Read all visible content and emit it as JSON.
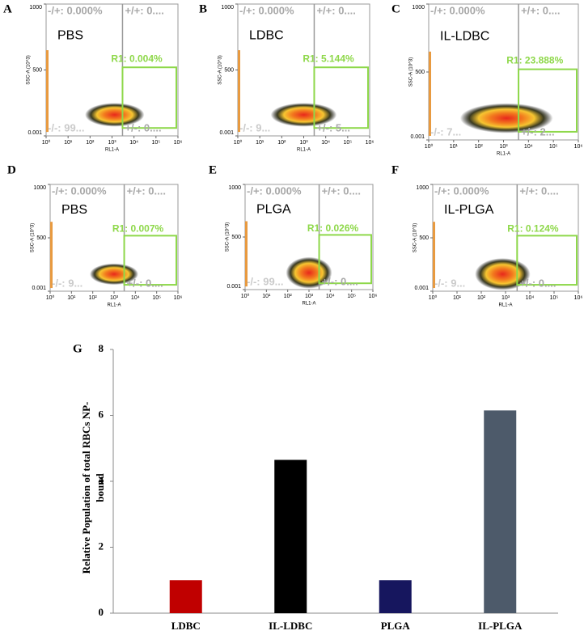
{
  "chart_data": [
    {
      "type": "flow",
      "panel_label": "A",
      "sample": "PBS",
      "quadrant_labels": {
        "ul": "-/+: 0.000%",
        "ur": "+/+: 0....",
        "ll": "-/-: 99...",
        "lr": "+/-: 0...."
      },
      "gate_label": "R1: 0.004%",
      "xlabel": "RL1-A",
      "ylabel": "SSC-A (10^3)",
      "xscale": "log",
      "xlim": [
        1,
        1000000
      ],
      "xticks": [
        {
          "value": 1,
          "label": "10⁰"
        },
        {
          "value": 10,
          "label": "10¹"
        },
        {
          "value": 100,
          "label": "10²"
        },
        {
          "value": 1000,
          "label": "10³"
        },
        {
          "value": 10000,
          "label": "10⁴"
        },
        {
          "value": 100000,
          "label": "10⁵"
        },
        {
          "value": 1000000,
          "label": "10⁶"
        }
      ],
      "ylim": [
        0,
        1000
      ],
      "yticks": [
        0.001,
        500,
        1000
      ],
      "gate_x": 3000
    },
    {
      "type": "flow",
      "panel_label": "B",
      "sample": "LDBC",
      "quadrant_labels": {
        "ul": "-/+: 0.000%",
        "ur": "+/+: 0....",
        "ll": "-/-: 9...",
        "lr": "+/-: 5..."
      },
      "gate_label": "R1: 5.144%",
      "xlabel": "RL1-A",
      "ylabel": "SSC-A (10^3)",
      "xscale": "log",
      "xlim": [
        1,
        1000000
      ],
      "xticks": [
        {
          "value": 1,
          "label": "10⁰"
        },
        {
          "value": 10,
          "label": "10¹"
        },
        {
          "value": 100,
          "label": "10²"
        },
        {
          "value": 1000,
          "label": "10³"
        },
        {
          "value": 10000,
          "label": "10⁴"
        },
        {
          "value": 100000,
          "label": "10⁵"
        },
        {
          "value": 1000000,
          "label": "10⁶"
        }
      ],
      "ylim": [
        0,
        1000
      ],
      "yticks": [
        0.001,
        500,
        1000
      ],
      "gate_x": 3000
    },
    {
      "type": "flow",
      "panel_label": "C",
      "sample": "IL-LDBC",
      "quadrant_labels": {
        "ul": "-/+: 0.000%",
        "ur": "+/+: 0....",
        "ll": "-/-: 7...",
        "lr": "+/-: 2..."
      },
      "gate_label": "R1: 23.888%",
      "xlabel": "RL1-A",
      "ylabel": "SSC-A (10^3)",
      "xscale": "log",
      "xlim": [
        1,
        1000000
      ],
      "xticks": [
        {
          "value": 1,
          "label": "10⁰"
        },
        {
          "value": 10,
          "label": "10¹"
        },
        {
          "value": 100,
          "label": "10²"
        },
        {
          "value": 1000,
          "label": "10³"
        },
        {
          "value": 10000,
          "label": "10⁴"
        },
        {
          "value": 100000,
          "label": "10⁵"
        },
        {
          "value": 1000000,
          "label": "10⁶"
        }
      ],
      "ylim": [
        0,
        1000
      ],
      "yticks": [
        0.001,
        500,
        1000
      ],
      "gate_x": 4000
    },
    {
      "type": "flow",
      "panel_label": "D",
      "sample": "PBS",
      "quadrant_labels": {
        "ul": "-/+: 0.000%",
        "ur": "+/+: 0....",
        "ll": "-/-: 9...",
        "lr": "+/-: 0...."
      },
      "gate_label": "R1: 0.007%",
      "xlabel": "RL1-A",
      "ylabel": "SSC-A (10^3)",
      "xscale": "log",
      "xlim": [
        1,
        1000000
      ],
      "xticks": [
        {
          "value": 1,
          "label": "10⁰"
        },
        {
          "value": 10,
          "label": "10¹"
        },
        {
          "value": 100,
          "label": "10²"
        },
        {
          "value": 1000,
          "label": "10³"
        },
        {
          "value": 10000,
          "label": "10⁴"
        },
        {
          "value": 100000,
          "label": "10⁵"
        },
        {
          "value": 1000000,
          "label": "10⁶"
        }
      ],
      "ylim": [
        0,
        1000
      ],
      "yticks": [
        0.001,
        500,
        1000
      ],
      "gate_x": 3000
    },
    {
      "type": "flow",
      "panel_label": "E",
      "sample": "PLGA",
      "quadrant_labels": {
        "ul": "-/+: 0.000%",
        "ur": "+/+: 0....",
        "ll": "-/-: 99...",
        "lr": "+/-: 0...."
      },
      "gate_label": "R1: 0.026%",
      "xlabel": "RL1-A",
      "ylabel": "SSC-A (10^3)",
      "xscale": "log",
      "xlim": [
        1,
        1000000
      ],
      "xticks": [
        {
          "value": 1,
          "label": "10⁰"
        },
        {
          "value": 10,
          "label": "10¹"
        },
        {
          "value": 100,
          "label": "10²"
        },
        {
          "value": 1000,
          "label": "10³"
        },
        {
          "value": 10000,
          "label": "10⁴"
        },
        {
          "value": 100000,
          "label": "10⁵"
        },
        {
          "value": 1000000,
          "label": "10⁶"
        }
      ],
      "ylim": [
        0,
        1000
      ],
      "yticks": [
        0.001,
        500,
        1000
      ],
      "gate_x": 3000
    },
    {
      "type": "flow",
      "panel_label": "F",
      "sample": "IL-PLGA",
      "quadrant_labels": {
        "ul": "-/+: 0.000%",
        "ur": "+/+: 0....",
        "ll": "-/-: 9...",
        "lr": "+/-: 0...."
      },
      "gate_label": "R1: 0.124%",
      "xlabel": "RL1-A",
      "ylabel": "SSC-A (10^3)",
      "xscale": "log",
      "xlim": [
        1,
        1000000
      ],
      "xticks": [
        {
          "value": 1,
          "label": "10⁰"
        },
        {
          "value": 10,
          "label": "10¹"
        },
        {
          "value": 100,
          "label": "10²"
        },
        {
          "value": 1000,
          "label": "10³"
        },
        {
          "value": 10000,
          "label": "10⁴"
        },
        {
          "value": 100000,
          "label": "10⁵"
        },
        {
          "value": 1000000,
          "label": "10⁶"
        }
      ],
      "ylim": [
        0,
        1000
      ],
      "yticks": [
        0.001,
        500,
        1000
      ],
      "gate_x": 3000
    },
    {
      "type": "bar",
      "panel_label": "G",
      "ylabel": [
        "Relative Population of total RBCs NP-",
        "bound"
      ],
      "categories": [
        "LDBC",
        "IL-LDBC",
        "PLGA",
        "IL-PLGA"
      ],
      "values": [
        1,
        4.65,
        1,
        6.15
      ],
      "colors": [
        "#c00000",
        "#000000",
        "#16165e",
        "#4d5a6a"
      ],
      "ylim": [
        0,
        8
      ],
      "yticks": [
        0,
        2,
        4,
        6,
        8
      ]
    }
  ]
}
